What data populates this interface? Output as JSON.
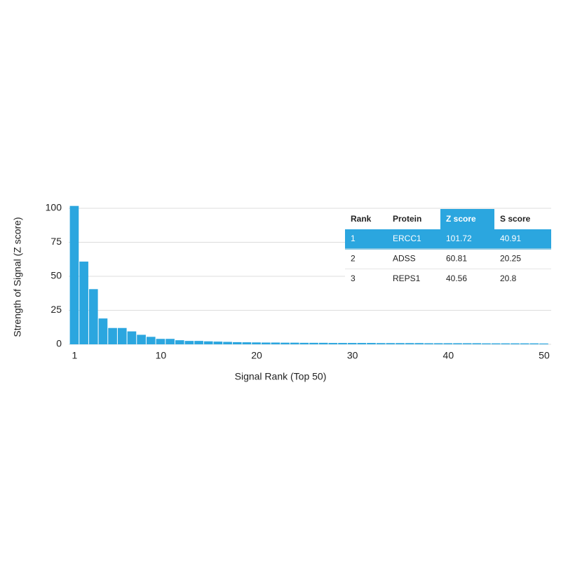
{
  "chart_data": {
    "type": "bar",
    "x": [
      1,
      2,
      3,
      4,
      5,
      6,
      7,
      8,
      9,
      10,
      11,
      12,
      13,
      14,
      15,
      16,
      17,
      18,
      19,
      20,
      21,
      22,
      23,
      24,
      25,
      26,
      27,
      28,
      29,
      30,
      31,
      32,
      33,
      34,
      35,
      36,
      37,
      38,
      39,
      40,
      41,
      42,
      43,
      44,
      45,
      46,
      47,
      48,
      49,
      50
    ],
    "values": [
      101.72,
      60.81,
      40.56,
      19,
      12,
      12,
      9.5,
      7,
      5.5,
      4,
      4,
      3,
      2.5,
      2.5,
      2.2,
      2,
      1.8,
      1.6,
      1.5,
      1.4,
      1.3,
      1.3,
      1.2,
      1.2,
      1.1,
      1.1,
      1.1,
      1,
      1,
      1,
      1,
      1,
      0.9,
      0.9,
      0.9,
      0.9,
      0.9,
      0.8,
      0.8,
      0.8,
      0.8,
      0.8,
      0.8,
      0.7,
      0.7,
      0.7,
      0.7,
      0.7,
      0.7,
      0.6
    ],
    "color": "#2ba6df",
    "xlabel": "Signal Rank (Top 50)",
    "ylabel": "Strength of Signal (Z score)",
    "xlim": [
      0.5,
      50.5
    ],
    "xticks": [
      1,
      10,
      20,
      30,
      40,
      50
    ],
    "ylim": [
      0,
      100
    ],
    "yticks": [
      0,
      25,
      50,
      75,
      100
    ],
    "grid": true,
    "highlight_color": "#2ba6df"
  },
  "table": {
    "columns": [
      "Rank",
      "Protein",
      "Z score",
      "S score"
    ],
    "rows": [
      [
        1,
        "ERCC1",
        101.72,
        40.91
      ],
      [
        2,
        "ADSS",
        60.81,
        20.25
      ],
      [
        3,
        "REPS1",
        40.56,
        20.8
      ]
    ]
  }
}
